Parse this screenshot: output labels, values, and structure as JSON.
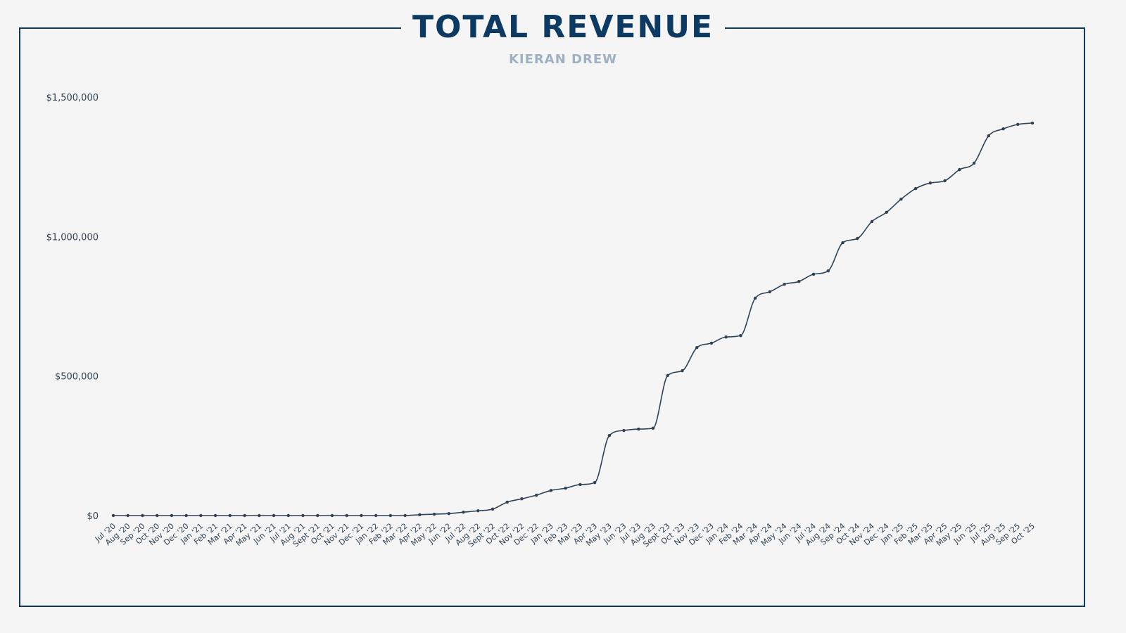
{
  "chart_data": {
    "type": "line",
    "title": "TOTAL REVENUE",
    "subtitle": "KIERAN DREW",
    "xlabel": "",
    "ylabel": "",
    "ylim": [
      0,
      1500000
    ],
    "yticks": [
      0,
      500000,
      1000000,
      1500000
    ],
    "ytick_labels": [
      "$0",
      "$500,000",
      "$1,000,000",
      "$1,500,000"
    ],
    "grid": false,
    "line_color": "#2e4256",
    "title_color": "#0d3a63",
    "subtitle_color": "#9fb0c4",
    "categories": [
      "Jul '20",
      "Aug '20",
      "Sep '20",
      "Oct '20",
      "Nov '20",
      "Dec '20",
      "Jan '21",
      "Feb '21",
      "Mar '21",
      "Apr '21",
      "May '21",
      "Jun '21",
      "Jul '21",
      "Aug '21",
      "Sept '21",
      "Oct '21",
      "Nov '21",
      "Dec '21",
      "Jan '22",
      "Feb '22",
      "Mar '22",
      "Apr '22",
      "May '22",
      "Jun '22",
      "Jul '22",
      "Aug '22",
      "Sept '22",
      "Oct '22",
      "Nov '22",
      "Dec '22",
      "Jan '23",
      "Feb '23",
      "Mar '23",
      "Apr '23",
      "May '23",
      "Jun '23",
      "Jul '23",
      "Aug '23",
      "Sept '23",
      "Oct '23",
      "Nov '23",
      "Dec '23",
      "Jan '24",
      "Feb '24",
      "Mar '24",
      "Apr '24",
      "May '24",
      "Jun '24",
      "Jul '24",
      "Aug '24",
      "Sep '24",
      "Oct '24",
      "Nov '24",
      "Dec '24",
      "Jan '25",
      "Feb '25",
      "Mar '25",
      "Apr '25",
      "May '25",
      "Jun '25",
      "Jul '25",
      "Aug '25",
      "Sep '25",
      "Oct '25"
    ],
    "values": [
      0,
      0,
      0,
      0,
      0,
      0,
      0,
      0,
      0,
      0,
      0,
      0,
      0,
      0,
      0,
      0,
      0,
      0,
      0,
      0,
      0,
      3000,
      5000,
      7000,
      12000,
      17000,
      23000,
      48000,
      60000,
      73000,
      90000,
      98000,
      111000,
      118000,
      287000,
      305000,
      310000,
      313000,
      502000,
      519000,
      602000,
      618000,
      640000,
      645000,
      779000,
      802000,
      829000,
      839000,
      865000,
      877000,
      978000,
      993000,
      1054000,
      1087000,
      1134000,
      1172000,
      1192000,
      1200000,
      1240000,
      1263000,
      1361000,
      1386000,
      1402000,
      1407000
    ]
  }
}
